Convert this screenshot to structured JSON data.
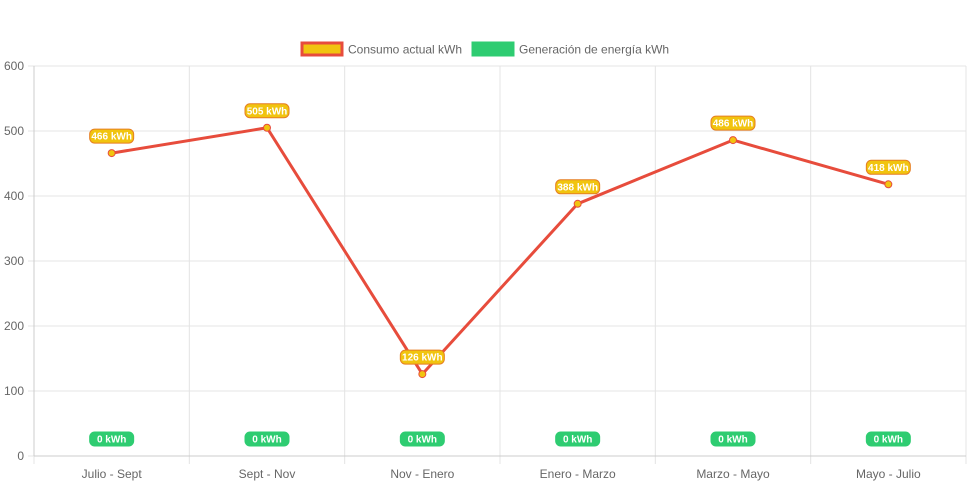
{
  "chart_data": {
    "type": "line",
    "categories": [
      "Julio - Sept",
      "Sept - Nov",
      "Nov - Enero",
      "Enero - Marzo",
      "Marzo - Mayo",
      "Mayo - Julio"
    ],
    "series": [
      {
        "name": "Consumo actual kWh",
        "values": [
          466,
          505,
          126,
          388,
          486,
          418
        ],
        "labels": [
          "466 kWh",
          "505 kWh",
          "126 kWh",
          "388 kWh",
          "486 kWh",
          "418 kWh"
        ],
        "line_color": "#e74c3c",
        "fill_color": "#f1c40f"
      },
      {
        "name": "Generación de energía kWh",
        "values": [
          0,
          0,
          0,
          0,
          0,
          0
        ],
        "labels": [
          "0 kWh",
          "0 kWh",
          "0 kWh",
          "0 kWh",
          "0 kWh",
          "0 kWh"
        ],
        "line_color": "#2ecc71",
        "fill_color": "#2ecc71"
      }
    ],
    "y_ticks": [
      "0",
      "100",
      "200",
      "300",
      "400",
      "500",
      "600"
    ],
    "ylim": [
      0,
      600
    ],
    "grid": true,
    "legend_position": "top"
  }
}
